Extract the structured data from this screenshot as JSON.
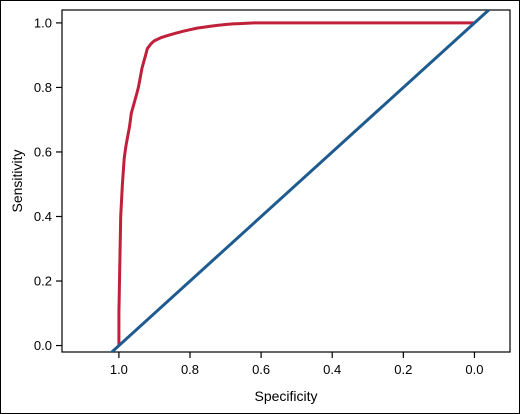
{
  "chart_data": {
    "type": "line",
    "title": "",
    "xlabel": "Specificity",
    "ylabel": "Sensitivity",
    "x_reversed": true,
    "xlim": [
      1.16,
      -0.1
    ],
    "ylim": [
      -0.02,
      1.04
    ],
    "x_ticks": [
      1.0,
      0.8,
      0.6,
      0.4,
      0.2,
      0.0
    ],
    "x_tick_labels": [
      "1.0",
      "0.8",
      "0.6",
      "0.4",
      "0.2",
      "0.0"
    ],
    "y_ticks": [
      0.0,
      0.2,
      0.4,
      0.6,
      0.8,
      1.0
    ],
    "y_tick_labels": [
      "0.0",
      "0.2",
      "0.4",
      "0.6",
      "0.8",
      "1.0"
    ],
    "grid": false,
    "series": [
      {
        "role": "roc-curve",
        "color": "#c0203a",
        "x": [
          1.0,
          1.0,
          0.995,
          0.99,
          0.985,
          0.98,
          0.975,
          0.97,
          0.965,
          0.96,
          0.955,
          0.95,
          0.945,
          0.94,
          0.935,
          0.93,
          0.925,
          0.92,
          0.91,
          0.9,
          0.88,
          0.86,
          0.84,
          0.82,
          0.8,
          0.78,
          0.76,
          0.74,
          0.72,
          0.7,
          0.68,
          0.66,
          0.64,
          0.62,
          0.6,
          0.55,
          0.5,
          0.4,
          0.3,
          0.2,
          0.1,
          0.0
        ],
        "y": [
          0.0,
          0.1,
          0.4,
          0.5,
          0.58,
          0.62,
          0.65,
          0.68,
          0.72,
          0.74,
          0.76,
          0.78,
          0.8,
          0.83,
          0.86,
          0.88,
          0.9,
          0.92,
          0.935,
          0.945,
          0.955,
          0.962,
          0.968,
          0.974,
          0.979,
          0.984,
          0.987,
          0.99,
          0.993,
          0.995,
          0.997,
          0.998,
          0.999,
          1.0,
          1.0,
          1.0,
          1.0,
          1.0,
          1.0,
          1.0,
          1.0,
          1.0
        ]
      },
      {
        "role": "reference-diagonal",
        "color": "#1f5b8f",
        "x": [
          1.04,
          -0.04
        ],
        "y": [
          -0.04,
          1.04
        ]
      }
    ]
  }
}
